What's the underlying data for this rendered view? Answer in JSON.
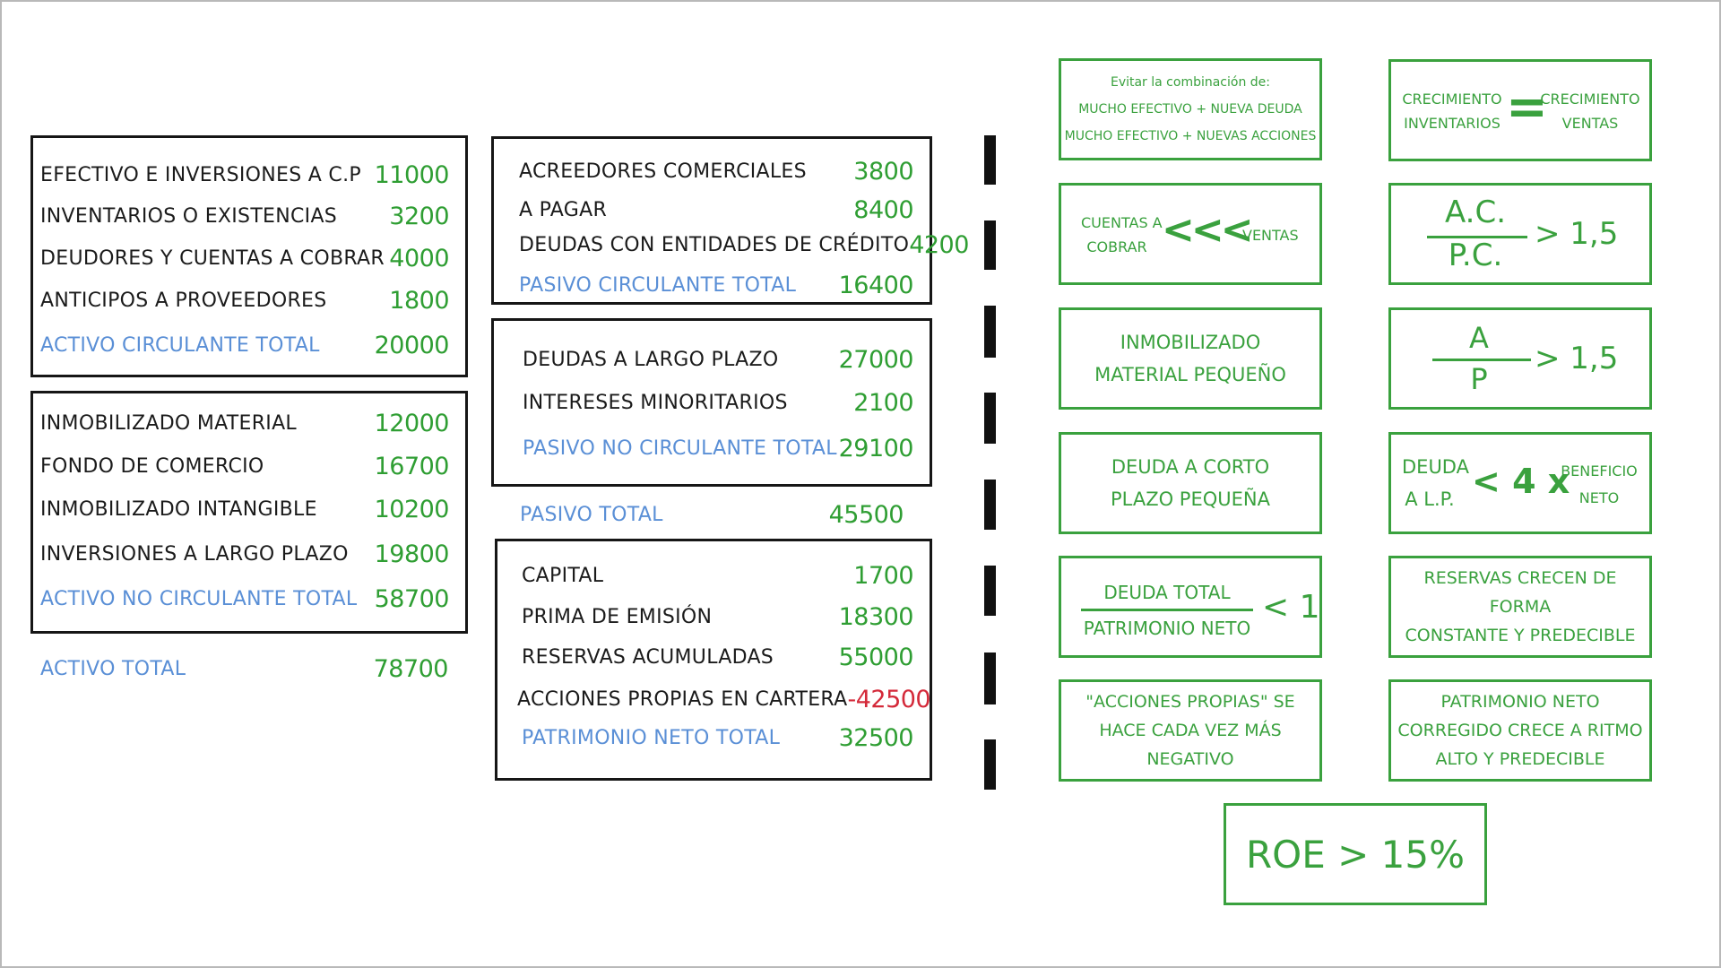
{
  "colors": {
    "green": "#2f9e33",
    "blue": "#5a8fd6",
    "red": "#d42a3a",
    "ink": "#161616"
  },
  "activo_circulante": {
    "rows": [
      {
        "label": "EFECTIVO E INVERSIONES A C.P",
        "value": "11000"
      },
      {
        "label": "INVENTARIOS O EXISTENCIAS",
        "value": "3200"
      },
      {
        "label": "DEUDORES Y CUENTAS A COBRAR",
        "value": "4000"
      },
      {
        "label": "ANTICIPOS A PROVEEDORES",
        "value": "1800"
      }
    ],
    "total": {
      "label": "ACTIVO CIRCULANTE TOTAL",
      "value": "20000"
    }
  },
  "activo_no_circulante": {
    "rows": [
      {
        "label": "INMOBILIZADO MATERIAL",
        "value": "12000"
      },
      {
        "label": "FONDO DE COMERCIO",
        "value": "16700"
      },
      {
        "label": "INMOBILIZADO INTANGIBLE",
        "value": "10200"
      },
      {
        "label": "INVERSIONES A LARGO PLAZO",
        "value": "19800"
      }
    ],
    "total": {
      "label": "ACTIVO NO CIRCULANTE TOTAL",
      "value": "58700"
    }
  },
  "activo_total": {
    "label": "ACTIVO TOTAL",
    "value": "78700"
  },
  "pasivo_circulante": {
    "rows": [
      {
        "label": "ACREEDORES COMERCIALES",
        "value": "3800"
      },
      {
        "label": "A PAGAR",
        "value": "8400"
      },
      {
        "label": "DEUDAS CON ENTIDADES DE CRÉDITO",
        "value": "4200"
      }
    ],
    "total": {
      "label": "PASIVO CIRCULANTE TOTAL",
      "value": "16400"
    }
  },
  "pasivo_no_circulante": {
    "rows": [
      {
        "label": "DEUDAS A LARGO PLAZO",
        "value": "27000"
      },
      {
        "label": "INTERESES MINORITARIOS",
        "value": "2100"
      }
    ],
    "total": {
      "label": "PASIVO NO CIRCULANTE TOTAL",
      "value": "29100"
    }
  },
  "pasivo_total": {
    "label": "PASIVO TOTAL",
    "value": "45500"
  },
  "patrimonio_neto": {
    "rows": [
      {
        "label": "CAPITAL",
        "value": "1700"
      },
      {
        "label": "PRIMA DE EMISIÓN",
        "value": "18300"
      },
      {
        "label": "RESERVAS ACUMULADAS",
        "value": "55000"
      },
      {
        "label": "ACCIONES PROPIAS EN CARTERA",
        "value": "-42500"
      }
    ],
    "total": {
      "label": "PATRIMONIO NETO TOTAL",
      "value": "32500"
    }
  },
  "rules": {
    "r1": {
      "lines": [
        "Evitar la combinación de:",
        "MUCHO EFECTIVO + NUEVA DEUDA",
        "MUCHO EFECTIVO + NUEVAS ACCIONES"
      ]
    },
    "r2": {
      "left": [
        "CRECIMIENTO",
        "INVENTARIOS"
      ],
      "symbol": "=",
      "right": [
        "CRECIMIENTO",
        "VENTAS"
      ]
    },
    "r3": {
      "left": [
        "CUENTAS A",
        "COBRAR"
      ],
      "symbol": "<<<",
      "right": "VENTAS"
    },
    "r4": {
      "numerator": "A.C.",
      "denominator": "P.C.",
      "comparison": "> 1,5"
    },
    "r5": {
      "lines": [
        "INMOBILIZADO",
        "MATERIAL PEQUEÑO"
      ]
    },
    "r6": {
      "numerator": "A",
      "denominator": "P",
      "comparison": "> 1,5"
    },
    "r7": {
      "lines": [
        "DEUDA A CORTO",
        "PLAZO PEQUEÑA"
      ]
    },
    "r8": {
      "left": [
        "DEUDA",
        "A L.P."
      ],
      "symbol": "< 4 x",
      "right": [
        "BENEFICIO",
        "NETO"
      ]
    },
    "r9": {
      "numerator": "DEUDA TOTAL",
      "denominator": "PATRIMONIO NETO",
      "comparison": "< 1"
    },
    "r10": {
      "lines": [
        "RESERVAS CRECEN DE FORMA",
        "CONSTANTE Y PREDECIBLE"
      ]
    },
    "r11": {
      "lines": [
        "\"ACCIONES PROPIAS\" SE",
        "HACE CADA VEZ MÁS",
        "NEGATIVO"
      ]
    },
    "r12": {
      "lines": [
        "PATRIMONIO NETO",
        "CORREGIDO CRECE A RITMO",
        "ALTO Y PREDECIBLE"
      ]
    },
    "roe": {
      "text": "ROE > 15%"
    }
  }
}
